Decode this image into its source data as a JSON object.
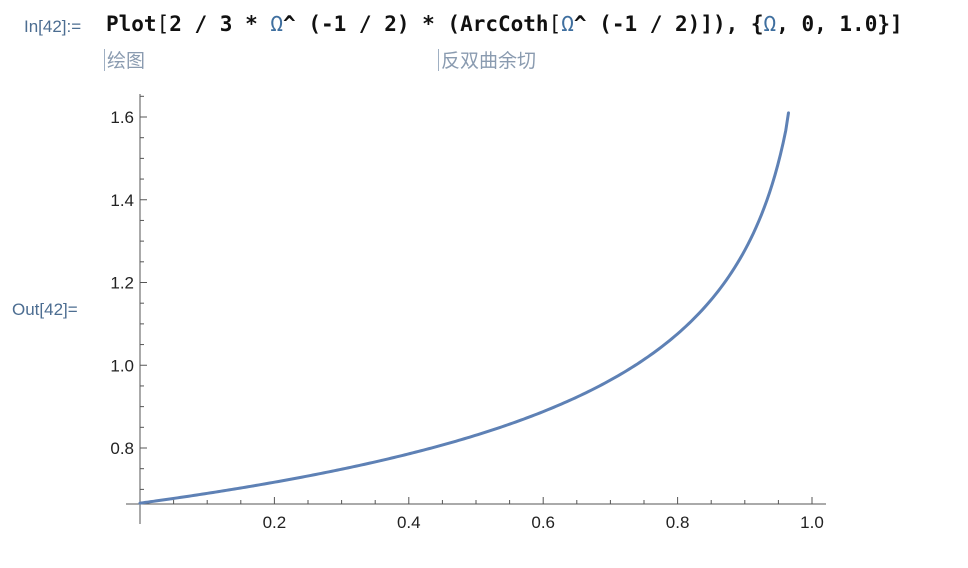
{
  "notebook": {
    "input_label": "In[42]:=",
    "output_label": "Out[42]=",
    "input_parts": {
      "fn": "Plot",
      "open": "[",
      "coef": "2 / 3 * ",
      "sym1": "Ω",
      "pow1": "^ (-1 / 2) * (",
      "fn2": "ArcCoth",
      "open2": "[",
      "sym2": "Ω",
      "pow2": "^ (-1 / 2)]), {",
      "sym3": "Ω",
      "range": ", 0, 1.0}]"
    },
    "hint_plot": "绘图",
    "hint_arccoth": "反双曲余切"
  },
  "colors": {
    "curve": "#5e81b5",
    "axis": "#555555",
    "label": "#4c6d91"
  },
  "chart_data": {
    "type": "line",
    "x": [
      0.0,
      0.05,
      0.1,
      0.15,
      0.2,
      0.25,
      0.3,
      0.35,
      0.4,
      0.45,
      0.5,
      0.55,
      0.6,
      0.65,
      0.7,
      0.75,
      0.8,
      0.85,
      0.88,
      0.9,
      0.92,
      0.94,
      0.95,
      0.96,
      0.965
    ],
    "series": [
      {
        "values": [
          0.667,
          0.678,
          0.69,
          0.703,
          0.717,
          0.731,
          0.747,
          0.764,
          0.782,
          0.803,
          0.826,
          0.852,
          0.881,
          0.916,
          0.958,
          1.01,
          1.076,
          1.165,
          1.237,
          1.298,
          1.377,
          1.484,
          1.558,
          1.658,
          1.61
        ]
      }
    ],
    "xlim": [
      0,
      1.0
    ],
    "ylim": [
      0.667,
      1.65
    ],
    "x_ticks": [
      "0.2",
      "0.4",
      "0.6",
      "0.8",
      "1.0"
    ],
    "y_ticks": [
      "0.8",
      "1.0",
      "1.2",
      "1.4",
      "1.6"
    ],
    "grid": false
  }
}
